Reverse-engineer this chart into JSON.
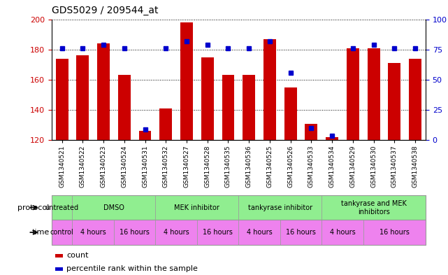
{
  "title": "GDS5029 / 209544_at",
  "samples": [
    "GSM1340521",
    "GSM1340522",
    "GSM1340523",
    "GSM1340524",
    "GSM1340531",
    "GSM1340532",
    "GSM1340527",
    "GSM1340528",
    "GSM1340535",
    "GSM1340536",
    "GSM1340525",
    "GSM1340526",
    "GSM1340533",
    "GSM1340534",
    "GSM1340529",
    "GSM1340530",
    "GSM1340537",
    "GSM1340538"
  ],
  "bar_values": [
    174,
    176,
    184,
    163,
    126,
    141,
    198,
    175,
    163,
    163,
    187,
    155,
    131,
    122,
    181,
    181,
    171,
    174
  ],
  "dot_values": [
    76,
    76,
    79,
    76,
    9,
    76,
    82,
    79,
    76,
    76,
    82,
    56,
    10,
    4,
    76,
    79,
    76,
    76
  ],
  "ylim_left": [
    120,
    200
  ],
  "ylim_right": [
    0,
    100
  ],
  "yticks_left": [
    120,
    140,
    160,
    180,
    200
  ],
  "yticks_right": [
    0,
    25,
    50,
    75,
    100
  ],
  "bar_color": "#cc0000",
  "dot_color": "#0000cc",
  "protocol_color": "#90ee90",
  "time_color": "#ee82ee",
  "time_groups": [
    {
      "label": "control",
      "start": 0,
      "end": 1
    },
    {
      "label": "4 hours",
      "start": 1,
      "end": 3
    },
    {
      "label": "16 hours",
      "start": 3,
      "end": 5
    },
    {
      "label": "4 hours",
      "start": 5,
      "end": 7
    },
    {
      "label": "16 hours",
      "start": 7,
      "end": 9
    },
    {
      "label": "4 hours",
      "start": 9,
      "end": 11
    },
    {
      "label": "16 hours",
      "start": 11,
      "end": 13
    },
    {
      "label": "4 hours",
      "start": 13,
      "end": 15
    },
    {
      "label": "16 hours",
      "start": 15,
      "end": 18
    }
  ],
  "protocol_groups": [
    {
      "label": "untreated",
      "start": 0,
      "end": 1
    },
    {
      "label": "DMSO",
      "start": 1,
      "end": 5
    },
    {
      "label": "MEK inhibitor",
      "start": 5,
      "end": 9
    },
    {
      "label": "tankyrase inhibitor",
      "start": 9,
      "end": 13
    },
    {
      "label": "tankyrase and MEK\ninhibitors",
      "start": 13,
      "end": 18
    }
  ],
  "left_label_color": "#cc0000",
  "right_label_color": "#0000cc"
}
